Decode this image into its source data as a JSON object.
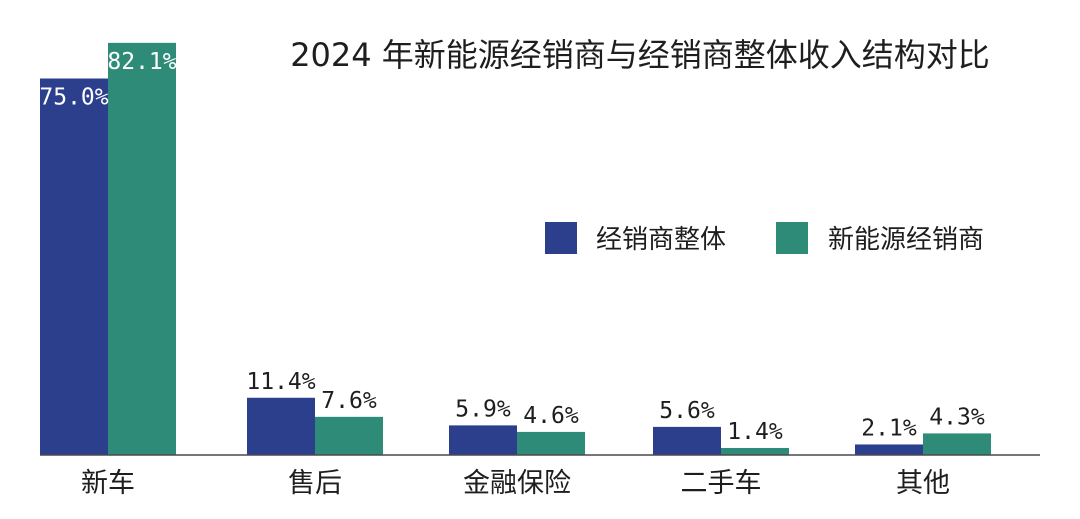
{
  "chart_data": {
    "type": "bar",
    "title": "2024 年新能源经销商与经销商整体收入结构对比",
    "xlabel": "",
    "ylabel": "",
    "ylim": [
      0,
      85
    ],
    "grid": false,
    "legend_position": "right",
    "categories": [
      "新车",
      "售后",
      "金融保险",
      "二手车",
      "其他"
    ],
    "series": [
      {
        "name": "经销商整体",
        "color": "#2c3f8c",
        "values": [
          75.0,
          11.4,
          5.9,
          5.6,
          2.1
        ],
        "labels": [
          "75.0%",
          "11.4%",
          "5.9%",
          "5.6%",
          "2.1%"
        ]
      },
      {
        "name": "新能源经销商",
        "color": "#2e8b78",
        "values": [
          82.1,
          7.6,
          4.6,
          1.4,
          4.3
        ],
        "labels": [
          "82.1%",
          "7.6%",
          "4.6%",
          "1.4%",
          "4.3%"
        ]
      }
    ]
  }
}
